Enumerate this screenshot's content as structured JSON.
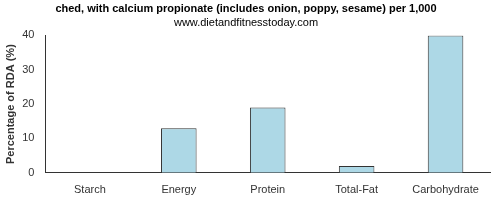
{
  "chart_data": {
    "type": "bar",
    "title": "ched, with calcium propionate (includes onion, poppy, sesame) per 1,000",
    "subtitle": "www.dietandfitnesstoday.com",
    "y_label": "Percentage of RDA (%)",
    "categories": [
      "Starch",
      "Energy",
      "Protein",
      "Total-Fat",
      "Carbohydrate"
    ],
    "values": [
      0,
      13,
      19,
      2,
      40
    ],
    "color": "#add8e6",
    "ylim": [
      0,
      40
    ],
    "yticks": [
      0,
      10,
      20,
      30,
      40
    ],
    "grid": false
  }
}
